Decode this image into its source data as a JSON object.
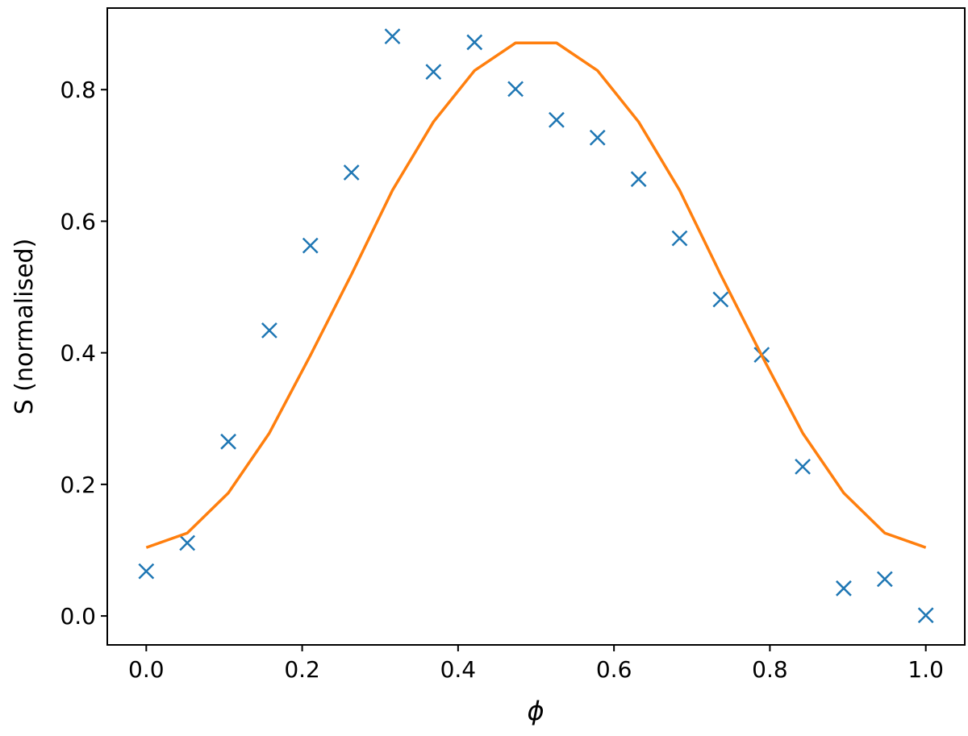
{
  "chart_data": {
    "type": "scatter",
    "xlabel": "ϕ",
    "ylabel": "S (normalised)",
    "x": [
      0,
      0.0526,
      0.1053,
      0.1579,
      0.2105,
      0.2632,
      0.3158,
      0.3684,
      0.4211,
      0.4737,
      0.5263,
      0.5789,
      0.6316,
      0.6842,
      0.7368,
      0.7895,
      0.8421,
      0.8947,
      0.9474,
      1
    ],
    "series": [
      {
        "type": "scatter",
        "color": "#1f77b4",
        "values": [
          0.068,
          0.111,
          0.265,
          0.434,
          0.563,
          0.674,
          0.881,
          0.827,
          0.872,
          0.801,
          0.754,
          0.727,
          0.664,
          0.574,
          0.481,
          0.397,
          0.227,
          0.042,
          0.056,
          0.001
        ]
      },
      {
        "type": "line",
        "color": "#ff7f0e",
        "values": [
          0.104,
          0.126,
          0.187,
          0.278,
          0.396,
          0.519,
          0.647,
          0.751,
          0.829,
          0.871,
          0.871,
          0.829,
          0.751,
          0.647,
          0.519,
          0.396,
          0.278,
          0.187,
          0.126,
          0.104
        ]
      }
    ],
    "xlim": [
      -0.05,
      1.05
    ],
    "ylim": [
      -0.044,
      0.924
    ],
    "xticks": [
      {
        "value": 0,
        "label": "0.0"
      },
      {
        "value": 0.2,
        "label": "0.2"
      },
      {
        "value": 0.4,
        "label": "0.4"
      },
      {
        "value": 0.6,
        "label": "0.6"
      },
      {
        "value": 0.8,
        "label": "0.8"
      },
      {
        "value": 1,
        "label": "1.0"
      }
    ],
    "yticks": [
      {
        "value": 0,
        "label": "0.0"
      },
      {
        "value": 0.2,
        "label": "0.2"
      },
      {
        "value": 0.4,
        "label": "0.4"
      },
      {
        "value": 0.6,
        "label": "0.6"
      },
      {
        "value": 0.8,
        "label": "0.8"
      }
    ]
  }
}
